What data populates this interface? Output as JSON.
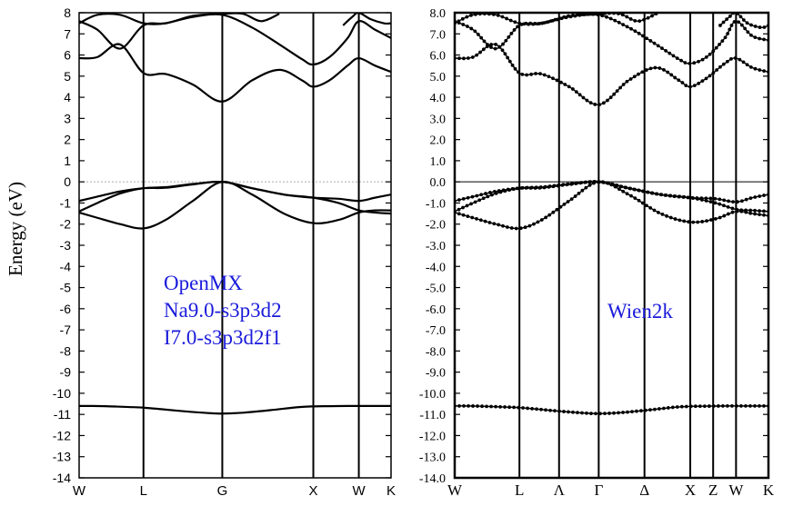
{
  "ylabel": "Energy (eV)",
  "colors": {
    "line": "#000000",
    "annotation": "#1a1adb",
    "fermi_left": "#aaaaaa",
    "fermi_right": "#000000"
  },
  "chart_data": [
    {
      "type": "line",
      "panel": "left",
      "annotation": [
        "OpenMX",
        "Na9.0-s3p3d2",
        "I7.0-s3p3d2f1"
      ],
      "ylim": [
        -14,
        8
      ],
      "yticks": [
        "8",
        "7",
        "6",
        "5",
        "4",
        "3",
        "2",
        "1",
        "0",
        "-1",
        "-2",
        "-3",
        "-4",
        "-5",
        "-6",
        "-7",
        "-8",
        "-9",
        "-10",
        "-11",
        "-12",
        "-13",
        "-14"
      ],
      "xticks": [
        {
          "label": "W",
          "x": 0.0
        },
        {
          "label": "L",
          "x": 0.707
        },
        {
          "label": "G",
          "x": 1.573
        },
        {
          "label": "X",
          "x": 2.573
        },
        {
          "label": "W",
          "x": 3.073
        },
        {
          "label": "K",
          "x": 3.427
        }
      ],
      "xlim": [
        0,
        3.427
      ],
      "fermi_level": 0,
      "series": [
        {
          "x": [
            0,
            0.15,
            0.35,
            0.55,
            0.707,
            0.9,
            1.15,
            1.4,
            1.573,
            1.8,
            2.1,
            2.4,
            2.573,
            2.75,
            2.95,
            3.073,
            3.2,
            3.35,
            3.427
          ],
          "values": [
            -10.6,
            -10.6,
            -10.62,
            -10.65,
            -10.68,
            -10.75,
            -10.85,
            -10.93,
            -10.96,
            -10.92,
            -10.8,
            -10.66,
            -10.62,
            -10.61,
            -10.6,
            -10.6,
            -10.6,
            -10.6,
            -10.6
          ]
        },
        {
          "x": [
            0,
            0.2,
            0.45,
            0.707,
            0.95,
            1.25,
            1.573,
            1.9,
            2.25,
            2.573,
            2.85,
            3.073,
            3.25,
            3.427
          ],
          "values": [
            -1.45,
            -1.7,
            -2.0,
            -2.2,
            -1.8,
            -0.9,
            0.0,
            -0.6,
            -1.5,
            -1.95,
            -1.8,
            -1.45,
            -1.35,
            -1.35
          ]
        },
        {
          "x": [
            0,
            0.2,
            0.45,
            0.707,
            0.95,
            1.25,
            1.573,
            1.9,
            2.25,
            2.573,
            2.85,
            3.073,
            3.25,
            3.427
          ],
          "values": [
            -1.4,
            -1.0,
            -0.55,
            -0.3,
            -0.25,
            -0.1,
            0.0,
            -0.3,
            -0.6,
            -0.75,
            -1.0,
            -1.35,
            -1.45,
            -1.5
          ]
        },
        {
          "x": [
            0,
            0.2,
            0.45,
            0.707,
            0.95,
            1.25,
            1.573,
            1.9,
            2.25,
            2.573,
            2.85,
            3.073,
            3.25,
            3.427
          ],
          "values": [
            -0.9,
            -0.7,
            -0.45,
            -0.3,
            -0.28,
            -0.12,
            0.0,
            -0.3,
            -0.6,
            -0.75,
            -0.8,
            -0.9,
            -0.75,
            -0.6
          ]
        },
        {
          "x": [
            0,
            0.2,
            0.45,
            0.707,
            0.95,
            1.25,
            1.573,
            1.9,
            2.2,
            2.45,
            2.573,
            2.75,
            2.95,
            3.073,
            3.25,
            3.427
          ],
          "values": [
            5.85,
            5.9,
            6.5,
            5.15,
            5.1,
            4.6,
            3.8,
            4.8,
            5.3,
            4.8,
            4.5,
            4.8,
            5.5,
            5.85,
            5.5,
            5.2
          ]
        },
        {
          "x": [
            0,
            0.2,
            0.45,
            0.707,
            0.95,
            1.25,
            1.573,
            1.9,
            2.2,
            2.45,
            2.573,
            2.75,
            2.95,
            3.073,
            3.25,
            3.427
          ],
          "values": [
            7.6,
            7.2,
            6.3,
            7.4,
            7.5,
            7.8,
            7.9,
            7.3,
            6.5,
            5.8,
            5.55,
            5.9,
            6.8,
            7.6,
            7.2,
            6.8
          ]
        },
        {
          "x": [
            0,
            0.2,
            0.45,
            0.707,
            0.95,
            1.25,
            1.573,
            1.8,
            2.0,
            2.2
          ],
          "values": [
            7.5,
            7.9,
            7.9,
            7.5,
            7.5,
            7.85,
            7.95,
            7.95,
            7.6,
            7.95
          ]
        },
        {
          "x": [
            2.9,
            3.0,
            3.073,
            3.2,
            3.35,
            3.427
          ],
          "values": [
            7.4,
            7.8,
            8.0,
            7.7,
            7.5,
            7.5
          ]
        }
      ]
    },
    {
      "type": "line",
      "panel": "right",
      "annotation": [
        "Wien2k"
      ],
      "ylim": [
        -14,
        8
      ],
      "yticks": [
        "8.0",
        "7.0",
        "6.0",
        "5.0",
        "4.0",
        "3.0",
        "2.0",
        "1.0",
        "0.0",
        "-1.0",
        "-2.0",
        "-3.0",
        "-4.0",
        "-5.0",
        "-6.0",
        "-7.0",
        "-8.0",
        "-9.0",
        "-10.0",
        "-11.0",
        "-12.0",
        "-13.0",
        "-14.0"
      ],
      "xticks": [
        {
          "label": "W",
          "x": 0.0
        },
        {
          "label": "L",
          "x": 0.707
        },
        {
          "label": "Λ",
          "x": 1.14
        },
        {
          "label": "Γ",
          "x": 1.573
        },
        {
          "label": "Δ",
          "x": 2.073
        },
        {
          "label": "X",
          "x": 2.573
        },
        {
          "label": "Z",
          "x": 2.823
        },
        {
          "label": "W",
          "x": 3.073
        },
        {
          "label": "K",
          "x": 3.427
        }
      ],
      "xlim": [
        0,
        3.427
      ],
      "fermi_level": 0,
      "series": [
        {
          "x": [
            0,
            0.15,
            0.35,
            0.55,
            0.707,
            0.9,
            1.15,
            1.4,
            1.573,
            1.8,
            2.1,
            2.4,
            2.573,
            2.75,
            2.95,
            3.073,
            3.2,
            3.35,
            3.427
          ],
          "values": [
            -10.6,
            -10.6,
            -10.62,
            -10.65,
            -10.68,
            -10.75,
            -10.85,
            -10.93,
            -10.96,
            -10.92,
            -10.8,
            -10.66,
            -10.62,
            -10.61,
            -10.6,
            -10.6,
            -10.6,
            -10.6,
            -10.6
          ]
        },
        {
          "x": [
            0,
            0.2,
            0.45,
            0.707,
            0.95,
            1.25,
            1.573,
            1.9,
            2.25,
            2.573,
            2.85,
            3.073,
            3.25,
            3.427
          ],
          "values": [
            -1.45,
            -1.7,
            -2.0,
            -2.2,
            -1.8,
            -0.9,
            0.0,
            -0.6,
            -1.5,
            -1.9,
            -1.75,
            -1.4,
            -1.5,
            -1.6
          ]
        },
        {
          "x": [
            0,
            0.2,
            0.45,
            0.707,
            0.95,
            1.25,
            1.573,
            1.9,
            2.25,
            2.573,
            2.85,
            3.073,
            3.25,
            3.427
          ],
          "values": [
            -1.4,
            -1.0,
            -0.55,
            -0.3,
            -0.25,
            -0.1,
            0.0,
            -0.3,
            -0.6,
            -0.75,
            -1.0,
            -1.3,
            -1.35,
            -1.4
          ]
        },
        {
          "x": [
            0,
            0.2,
            0.45,
            0.707,
            0.95,
            1.25,
            1.573,
            1.9,
            2.25,
            2.573,
            2.85,
            3.073,
            3.25,
            3.427
          ],
          "values": [
            -0.9,
            -0.7,
            -0.45,
            -0.3,
            -0.28,
            -0.12,
            0.0,
            -0.3,
            -0.6,
            -0.75,
            -0.8,
            -0.95,
            -0.75,
            -0.6
          ]
        },
        {
          "x": [
            0,
            0.2,
            0.45,
            0.707,
            0.95,
            1.25,
            1.573,
            1.9,
            2.2,
            2.45,
            2.573,
            2.75,
            2.95,
            3.073,
            3.25,
            3.427
          ],
          "values": [
            5.85,
            5.9,
            6.5,
            5.15,
            5.1,
            4.5,
            3.65,
            4.8,
            5.4,
            4.8,
            4.5,
            4.9,
            5.6,
            5.85,
            5.4,
            5.2
          ]
        },
        {
          "x": [
            0,
            0.2,
            0.45,
            0.707,
            0.95,
            1.25,
            1.573,
            1.9,
            2.2,
            2.45,
            2.573,
            2.75,
            2.95,
            3.073,
            3.25,
            3.427
          ],
          "values": [
            7.6,
            7.2,
            6.3,
            7.4,
            7.5,
            7.8,
            7.9,
            7.3,
            6.5,
            5.8,
            5.6,
            5.9,
            6.8,
            7.6,
            6.9,
            6.7
          ]
        },
        {
          "x": [
            0,
            0.2,
            0.45,
            0.707,
            0.95,
            1.25,
            1.573,
            1.8,
            2.0,
            2.2
          ],
          "values": [
            7.5,
            7.9,
            7.9,
            7.5,
            7.5,
            7.85,
            7.95,
            7.95,
            7.6,
            7.95
          ]
        },
        {
          "x": [
            2.9,
            3.0,
            3.073,
            3.2,
            3.35,
            3.427
          ],
          "values": [
            7.4,
            7.8,
            8.0,
            7.5,
            7.3,
            7.4
          ]
        }
      ]
    }
  ]
}
